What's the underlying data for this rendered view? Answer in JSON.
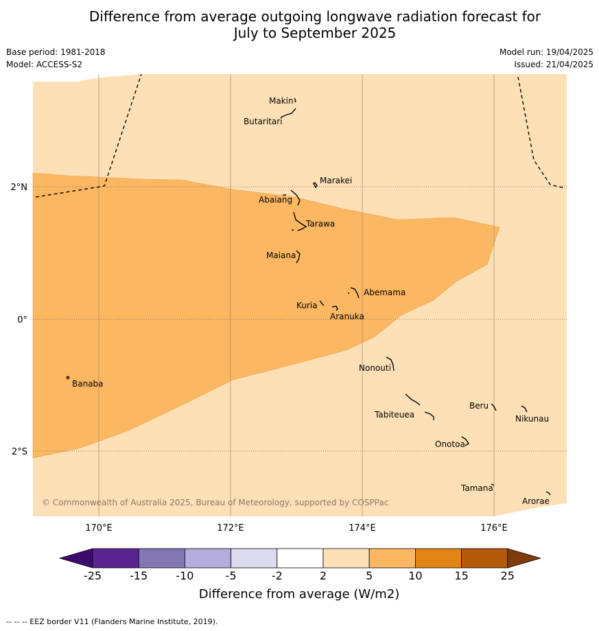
{
  "title": {
    "line1": "Difference from average outgoing longwave radiation forecast for",
    "line2": "July to September 2025"
  },
  "meta": {
    "base_period": "Base period: 1981-2018",
    "model": "Model: ACCESS-S2",
    "model_run": "Model run: 19/04/2025",
    "issued": "Issued: 21/04/2025"
  },
  "map": {
    "lon_labels": [
      "170°E",
      "172°E",
      "174°E",
      "176°E"
    ],
    "lat_labels": [
      "2°N",
      "0°",
      "2°S"
    ],
    "islands": [
      "Makin",
      "Butaritari",
      "Marakei",
      "Abaiang",
      "Tarawa",
      "Maiana",
      "Abemama",
      "Kuria",
      "Aranuka",
      "Banaba",
      "Nonouti",
      "Beru",
      "Tabiteuea",
      "Nikunau",
      "Onotoa",
      "Tamana",
      "Arorae"
    ],
    "copyright": "© Commonwealth of Australia 2025, Bureau of Meteorology, supported by COSPPac",
    "colors": {
      "background_class": "#fde0b6",
      "anomaly_class": "#fbb762"
    }
  },
  "colorbar": {
    "ticks": [
      "-25",
      "-15",
      "-10",
      "-5",
      "-2",
      "2",
      "5",
      "10",
      "15",
      "25"
    ],
    "colors": [
      "#3f0a6e",
      "#5b2591",
      "#8377b3",
      "#b5addb",
      "#dcdbee",
      "#ffffff",
      "#fde0b6",
      "#fbb762",
      "#e18516",
      "#b45a0b",
      "#7f3b08"
    ],
    "label": "Difference from average (W/m2)"
  },
  "footer": "--  --  -- EEZ border V11 (Flanders Marine Institute, 2019)."
}
